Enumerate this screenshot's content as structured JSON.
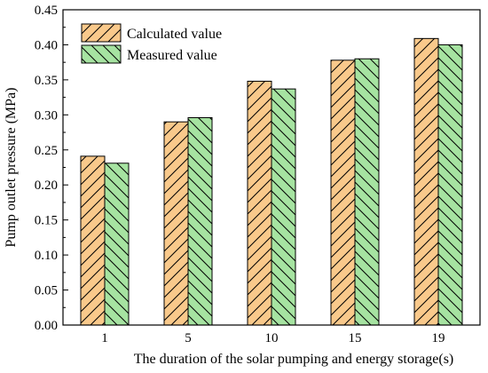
{
  "chart_data": {
    "type": "bar",
    "categories": [
      "1",
      "5",
      "10",
      "15",
      "19"
    ],
    "series": [
      {
        "name": "Calculated value",
        "values": [
          0.241,
          0.29,
          0.348,
          0.378,
          0.409
        ],
        "color": "#f9c98b",
        "hatch": "forward"
      },
      {
        "name": "Measured value",
        "values": [
          0.231,
          0.296,
          0.337,
          0.38,
          0.4
        ],
        "color": "#a6e3a1",
        "hatch": "backward"
      }
    ],
    "title": "",
    "xlabel": "The duration of the solar pumping and energy storage(s)",
    "ylabel": "Pump outlet pressure (MPa)",
    "ylim": [
      0,
      0.45
    ],
    "yticks": [
      "0.00",
      "0.05",
      "0.10",
      "0.15",
      "0.20",
      "0.25",
      "0.30",
      "0.35",
      "0.40",
      "0.45"
    ],
    "grid": false,
    "legend_position": "top-left"
  }
}
